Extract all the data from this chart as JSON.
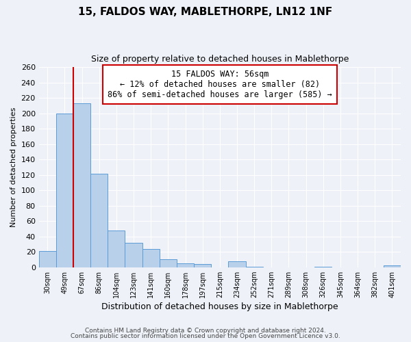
{
  "title": "15, FALDOS WAY, MABLETHORPE, LN12 1NF",
  "subtitle": "Size of property relative to detached houses in Mablethorpe",
  "xlabel": "Distribution of detached houses by size in Mablethorpe",
  "ylabel": "Number of detached properties",
  "bar_labels": [
    "30sqm",
    "49sqm",
    "67sqm",
    "86sqm",
    "104sqm",
    "123sqm",
    "141sqm",
    "160sqm",
    "178sqm",
    "197sqm",
    "215sqm",
    "234sqm",
    "252sqm",
    "271sqm",
    "289sqm",
    "308sqm",
    "326sqm",
    "345sqm",
    "364sqm",
    "382sqm",
    "401sqm"
  ],
  "bar_values": [
    21,
    200,
    213,
    122,
    48,
    32,
    24,
    10,
    5,
    4,
    0,
    8,
    1,
    0,
    0,
    0,
    1,
    0,
    0,
    0,
    2
  ],
  "bar_color": "#b8d0ea",
  "bar_edge_color": "#5b9bd5",
  "property_line_x": 1.5,
  "property_line_color": "#cc0000",
  "annotation_title": "15 FALDOS WAY: 56sqm",
  "annotation_line1": "← 12% of detached houses are smaller (82)",
  "annotation_line2": "86% of semi-detached houses are larger (585) →",
  "annotation_box_color": "#cc0000",
  "ylim": [
    0,
    260
  ],
  "yticks": [
    0,
    20,
    40,
    60,
    80,
    100,
    120,
    140,
    160,
    180,
    200,
    220,
    240,
    260
  ],
  "footer1": "Contains HM Land Registry data © Crown copyright and database right 2024.",
  "footer2": "Contains public sector information licensed under the Open Government Licence v3.0.",
  "background_color": "#eef2f8",
  "plot_bg_color": "#eef2f8",
  "grid_color": "#ffffff"
}
